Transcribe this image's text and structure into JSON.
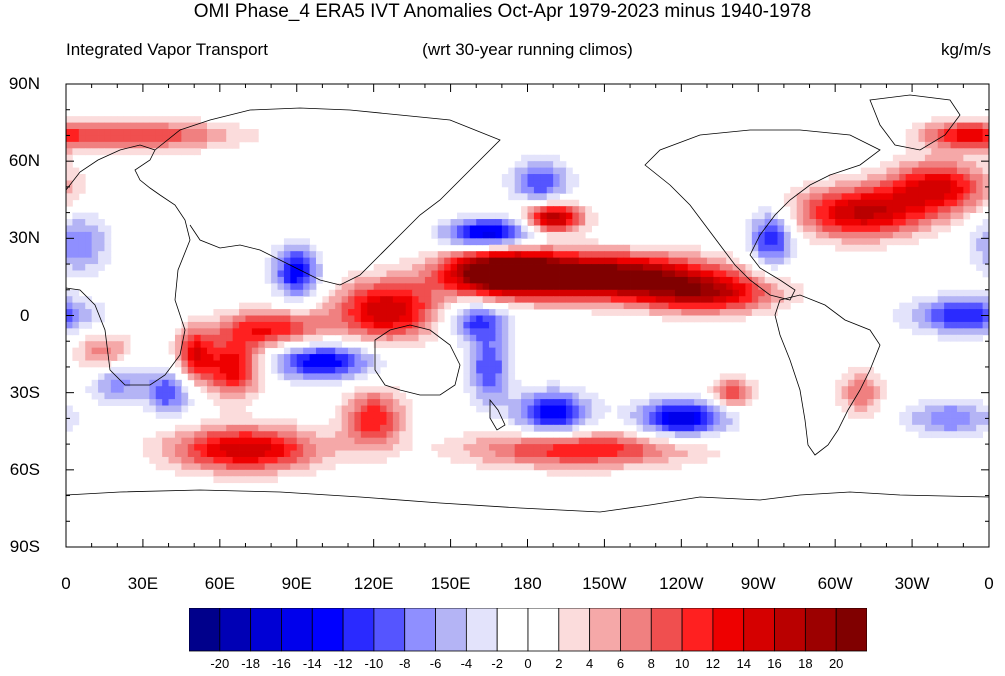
{
  "title": "OMI Phase_4 ERA5 IVT Anomalies Oct-Apr 1979-2023 minus 1940-1978",
  "subtitle_left": "Integrated Vapor Transport",
  "subtitle_center": "(wrt 30-year running climos)",
  "subtitle_right": "kg/m/s",
  "y_tick_labels": [
    "90N",
    "60N",
    "30N",
    "0",
    "30S",
    "60S",
    "90S"
  ],
  "x_tick_labels": [
    "0",
    "30E",
    "60E",
    "90E",
    "120E",
    "150E",
    "180",
    "150W",
    "120W",
    "90W",
    "60W",
    "30W",
    "0"
  ],
  "colorbar_labels": [
    "-20",
    "-18",
    "-16",
    "-14",
    "-12",
    "-10",
    "-8",
    "-6",
    "-4",
    "-2",
    "0",
    "2",
    "4",
    "6",
    "8",
    "10",
    "12",
    "14",
    "16",
    "18",
    "20"
  ],
  "colors": [
    "#00008b",
    "#0000b5",
    "#0000d5",
    "#0000ec",
    "#0000ff",
    "#2a2aff",
    "#5555ff",
    "#8f8fff",
    "#b4b4f5",
    "#e3e3fb",
    "#ffffff",
    "#ffffff",
    "#fbdcdc",
    "#f5a8a8",
    "#f08080",
    "#f04f4f",
    "#ff2020",
    "#ee0000",
    "#d50000",
    "#b90000",
    "#9c0000",
    "#800000"
  ],
  "chart_data": {
    "type": "heatmap",
    "title": "OMI Phase_4 ERA5 IVT Anomalies Oct-Apr 1979-2023 minus 1940-1978",
    "variable": "Integrated Vapor Transport",
    "units": "kg/m/s",
    "xlim": [
      0,
      360
    ],
    "ylim": [
      -90,
      90
    ],
    "contour_levels": [
      -20,
      -18,
      -16,
      -14,
      -12,
      -10,
      -8,
      -6,
      -4,
      -2,
      0,
      2,
      4,
      6,
      8,
      10,
      12,
      14,
      16,
      18,
      20
    ],
    "anomaly_features": [
      {
        "lon": 210,
        "lat": 15,
        "sx": 30,
        "sy": 6,
        "amp": 24
      },
      {
        "lon": 170,
        "lat": 17,
        "sx": 16,
        "sy": 6,
        "amp": 22
      },
      {
        "lon": 250,
        "lat": 8,
        "sx": 18,
        "sy": 5,
        "amp": 14
      },
      {
        "lon": 165,
        "lat": 32,
        "sx": 12,
        "sy": 4,
        "amp": -16
      },
      {
        "lon": 190,
        "lat": 38,
        "sx": 8,
        "sy": 4,
        "amp": 18
      },
      {
        "lon": 185,
        "lat": 52,
        "sx": 8,
        "sy": 6,
        "amp": -10
      },
      {
        "lon": 310,
        "lat": 40,
        "sx": 18,
        "sy": 7,
        "amp": 16
      },
      {
        "lon": 340,
        "lat": 50,
        "sx": 14,
        "sy": 7,
        "amp": 14
      },
      {
        "lon": 275,
        "lat": 30,
        "sx": 6,
        "sy": 8,
        "amp": -12
      },
      {
        "lon": 90,
        "lat": 17,
        "sx": 6,
        "sy": 7,
        "amp": -14
      },
      {
        "lon": 125,
        "lat": 2,
        "sx": 14,
        "sy": 8,
        "amp": 16
      },
      {
        "lon": 160,
        "lat": -2,
        "sx": 8,
        "sy": 5,
        "amp": -10
      },
      {
        "lon": 80,
        "lat": -5,
        "sx": 14,
        "sy": 5,
        "amp": 12
      },
      {
        "lon": 100,
        "lat": -18,
        "sx": 14,
        "sy": 5,
        "amp": -14
      },
      {
        "lon": 65,
        "lat": -20,
        "sx": 8,
        "sy": 8,
        "amp": 14
      },
      {
        "lon": 50,
        "lat": -15,
        "sx": 5,
        "sy": 7,
        "amp": 12
      },
      {
        "lon": 70,
        "lat": -52,
        "sx": 20,
        "sy": 6,
        "amp": 16
      },
      {
        "lon": 120,
        "lat": -40,
        "sx": 8,
        "sy": 8,
        "amp": 12
      },
      {
        "lon": 165,
        "lat": -20,
        "sx": 6,
        "sy": 10,
        "amp": -10
      },
      {
        "lon": 190,
        "lat": -38,
        "sx": 10,
        "sy": 6,
        "amp": -14
      },
      {
        "lon": 240,
        "lat": -40,
        "sx": 12,
        "sy": 5,
        "amp": -16
      },
      {
        "lon": 200,
        "lat": -52,
        "sx": 30,
        "sy": 5,
        "amp": 12
      },
      {
        "lon": 260,
        "lat": -30,
        "sx": 6,
        "sy": 4,
        "amp": 10
      },
      {
        "lon": 350,
        "lat": 0,
        "sx": 14,
        "sy": 5,
        "amp": -12
      },
      {
        "lon": 15,
        "lat": -15,
        "sx": 8,
        "sy": 6,
        "amp": 8
      },
      {
        "lon": 20,
        "lat": -25,
        "sx": 8,
        "sy": 6,
        "amp": -8
      },
      {
        "lon": 40,
        "lat": -30,
        "sx": 6,
        "sy": 6,
        "amp": -10
      },
      {
        "lon": 5,
        "lat": 28,
        "sx": 8,
        "sy": 8,
        "amp": -8
      },
      {
        "lon": 30,
        "lat": 70,
        "sx": 25,
        "sy": 4,
        "amp": 10
      },
      {
        "lon": 350,
        "lat": 70,
        "sx": 12,
        "sy": 4,
        "amp": 10
      },
      {
        "lon": 345,
        "lat": -40,
        "sx": 12,
        "sy": 5,
        "amp": -8
      },
      {
        "lon": 310,
        "lat": -30,
        "sx": 6,
        "sy": 6,
        "amp": 8
      }
    ]
  }
}
